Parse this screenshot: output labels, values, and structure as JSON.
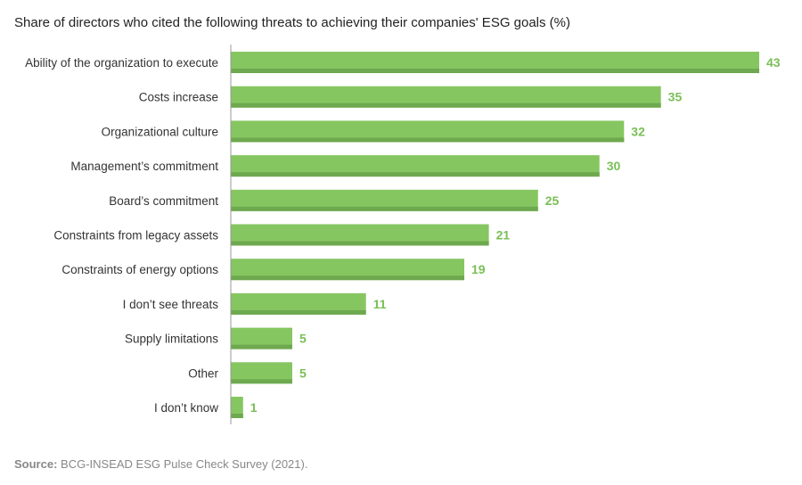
{
  "chart_data": {
    "type": "bar",
    "orientation": "horizontal",
    "title": "Share of directors who cited the following threats to achieving their companies' ESG goals (%)",
    "categories": [
      "Ability of the organization to execute",
      "Costs increase",
      "Organizational culture",
      "Management’s commitment",
      "Board’s commitment",
      "Constraints from legacy assets",
      "Constraints of energy options",
      "I don’t see threats",
      "Supply limitations",
      "Other",
      "I don’t know"
    ],
    "values": [
      43,
      35,
      32,
      30,
      25,
      21,
      19,
      11,
      5,
      5,
      1
    ],
    "xlim": [
      0,
      43
    ],
    "grid": false,
    "data_labels": true,
    "colors": {
      "bar": "#86c661",
      "bar_shadow": "#6ea84f",
      "label": "#79bf55"
    }
  },
  "source": {
    "label": "Source:",
    "text": " BCG-INSEAD ESG Pulse Check Survey (2021)."
  }
}
